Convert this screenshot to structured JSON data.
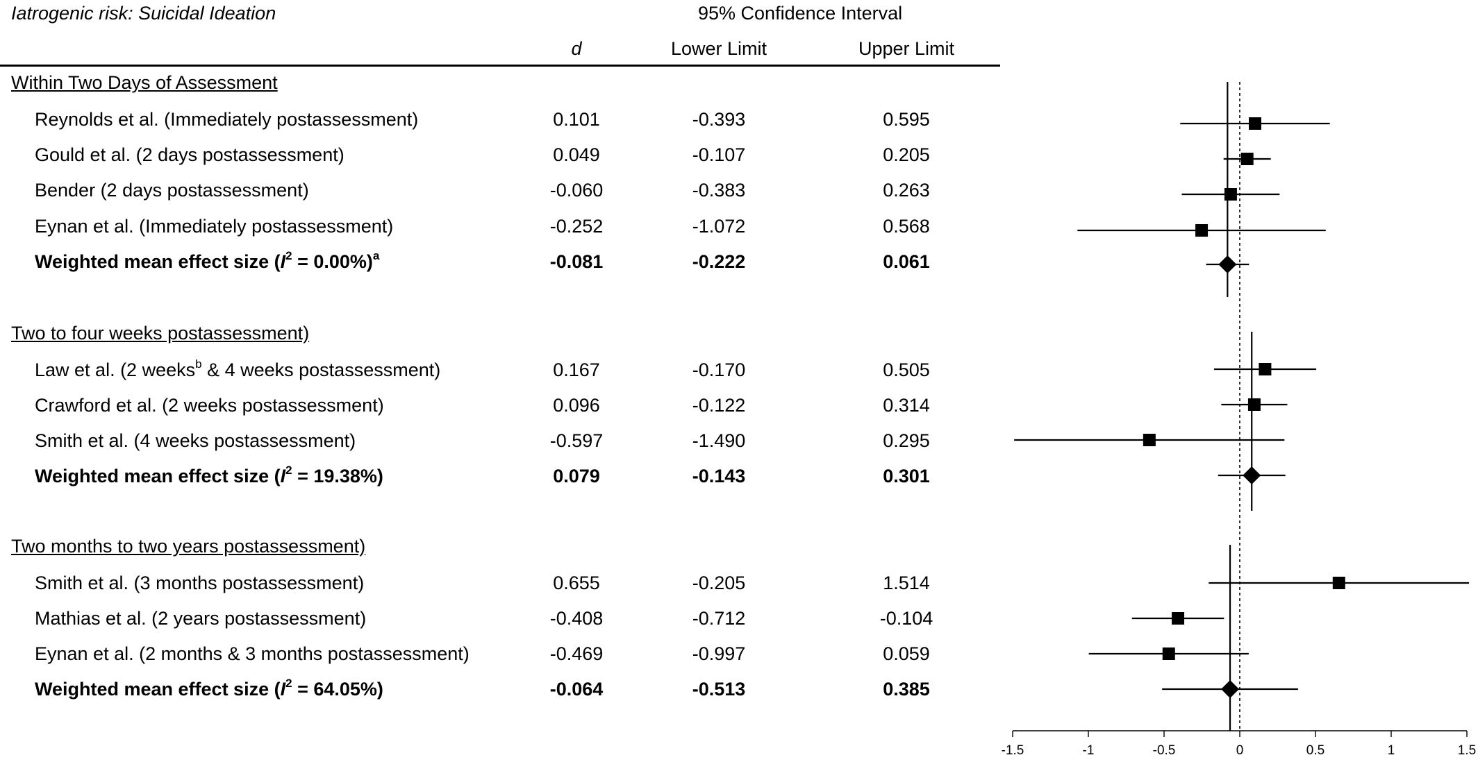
{
  "title": "Iatrogenic risk: Suicidal Ideation",
  "ci_header": "95% Confidence Interval",
  "columns": {
    "d": "d",
    "lower": "Lower Limit",
    "upper": "Upper Limit"
  },
  "groups": [
    {
      "label": "Within Two Days of Assessment",
      "studies": [
        {
          "name": "Reynolds et al. (Immediately postassessment)",
          "d": "0.101",
          "lower": "-0.393",
          "upper": "0.595"
        },
        {
          "name": "Gould et al. (2 days postassessment)",
          "d": "0.049",
          "lower": "-0.107",
          "upper": "0.205"
        },
        {
          "name": "Bender (2 days postassessment)",
          "d": "-0.060",
          "lower": "-0.383",
          "upper": "0.263"
        },
        {
          "name": "Eynan et al. (Immediately postassessment)",
          "d": "-0.252",
          "lower": "-1.072",
          "upper": "0.568"
        }
      ],
      "summary": {
        "label_pre": "Weighted mean effect size (",
        "label_i": "I",
        "label_sup": "2",
        "label_post": " = 0.00%)",
        "label_note": "a",
        "d": "-0.081",
        "lower": "-0.222",
        "upper": "0.061"
      }
    },
    {
      "label": "Two to four weeks postassessment)",
      "studies": [
        {
          "name_pre": "Law et al. (2 weeks",
          "name_sup": "b",
          "name_post": " & 4 weeks postassessment)",
          "d": "0.167",
          "lower": "-0.170",
          "upper": "0.505"
        },
        {
          "name": "Crawford et al. (2 weeks postassessment)",
          "d": "0.096",
          "lower": "-0.122",
          "upper": "0.314"
        },
        {
          "name": "Smith et al. (4 weeks postassessment)",
          "d": "-0.597",
          "lower": "-1.490",
          "upper": "0.295"
        }
      ],
      "summary": {
        "label_pre": "Weighted mean effect size (",
        "label_i": "I",
        "label_sup": "2",
        "label_post": " = 19.38%)",
        "label_note": "",
        "d": "0.079",
        "lower": "-0.143",
        "upper": "0.301"
      }
    },
    {
      "label": "Two months to two years postassessment)",
      "studies": [
        {
          "name": "Smith et al. (3 months postassessment)",
          "d": "0.655",
          "lower": "-0.205",
          "upper": "1.514"
        },
        {
          "name": "Mathias et al. (2 years postassessment)",
          "d": "-0.408",
          "lower": "-0.712",
          "upper": "-0.104"
        },
        {
          "name": "Eynan et al. (2 months & 3 months postassessment)",
          "d": "-0.469",
          "lower": "-0.997",
          "upper": "0.059"
        }
      ],
      "summary": {
        "label_pre": "Weighted mean effect size (",
        "label_i": "I",
        "label_sup": "2",
        "label_post": " = 64.05%)",
        "label_note": "",
        "d": "-0.064",
        "lower": "-0.513",
        "upper": "0.385"
      }
    }
  ],
  "chart_data": {
    "type": "scatter",
    "subtype": "forest-plot",
    "x_ticks": [
      "-1.5",
      "-1",
      "-0.5",
      "0",
      "0.5",
      "1",
      "1.5"
    ],
    "xlim": [
      -1.5,
      1.5
    ],
    "reference_line": 0,
    "grid": false,
    "points": [
      {
        "group": 0,
        "d": 0.101,
        "lower": -0.393,
        "upper": 0.595,
        "marker": "square"
      },
      {
        "group": 0,
        "d": 0.049,
        "lower": -0.107,
        "upper": 0.205,
        "marker": "square"
      },
      {
        "group": 0,
        "d": -0.06,
        "lower": -0.383,
        "upper": 0.263,
        "marker": "square"
      },
      {
        "group": 0,
        "d": -0.252,
        "lower": -1.072,
        "upper": 0.568,
        "marker": "square"
      },
      {
        "group": 0,
        "d": -0.081,
        "lower": -0.222,
        "upper": 0.061,
        "marker": "diamond"
      },
      {
        "group": 1,
        "d": 0.167,
        "lower": -0.17,
        "upper": 0.505,
        "marker": "square"
      },
      {
        "group": 1,
        "d": 0.096,
        "lower": -0.122,
        "upper": 0.314,
        "marker": "square"
      },
      {
        "group": 1,
        "d": -0.597,
        "lower": -1.49,
        "upper": 0.295,
        "marker": "square"
      },
      {
        "group": 1,
        "d": 0.079,
        "lower": -0.143,
        "upper": 0.301,
        "marker": "diamond"
      },
      {
        "group": 2,
        "d": 0.655,
        "lower": -0.205,
        "upper": 1.514,
        "marker": "square"
      },
      {
        "group": 2,
        "d": -0.408,
        "lower": -0.712,
        "upper": -0.104,
        "marker": "square"
      },
      {
        "group": 2,
        "d": -0.469,
        "lower": -0.997,
        "upper": 0.059,
        "marker": "square"
      },
      {
        "group": 2,
        "d": -0.064,
        "lower": -0.513,
        "upper": 0.385,
        "marker": "diamond"
      }
    ]
  }
}
